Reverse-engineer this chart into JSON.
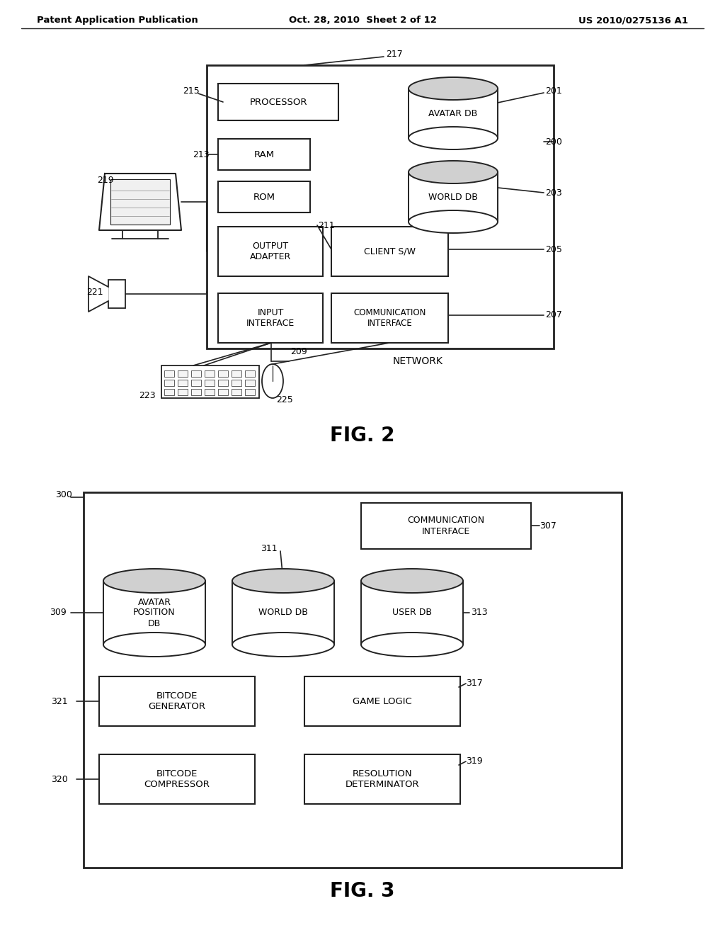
{
  "bg_color": "#ffffff",
  "header": {
    "left": "Patent Application Publication",
    "center": "Oct. 28, 2010  Sheet 2 of 12",
    "right": "US 2010/0275136 A1"
  }
}
